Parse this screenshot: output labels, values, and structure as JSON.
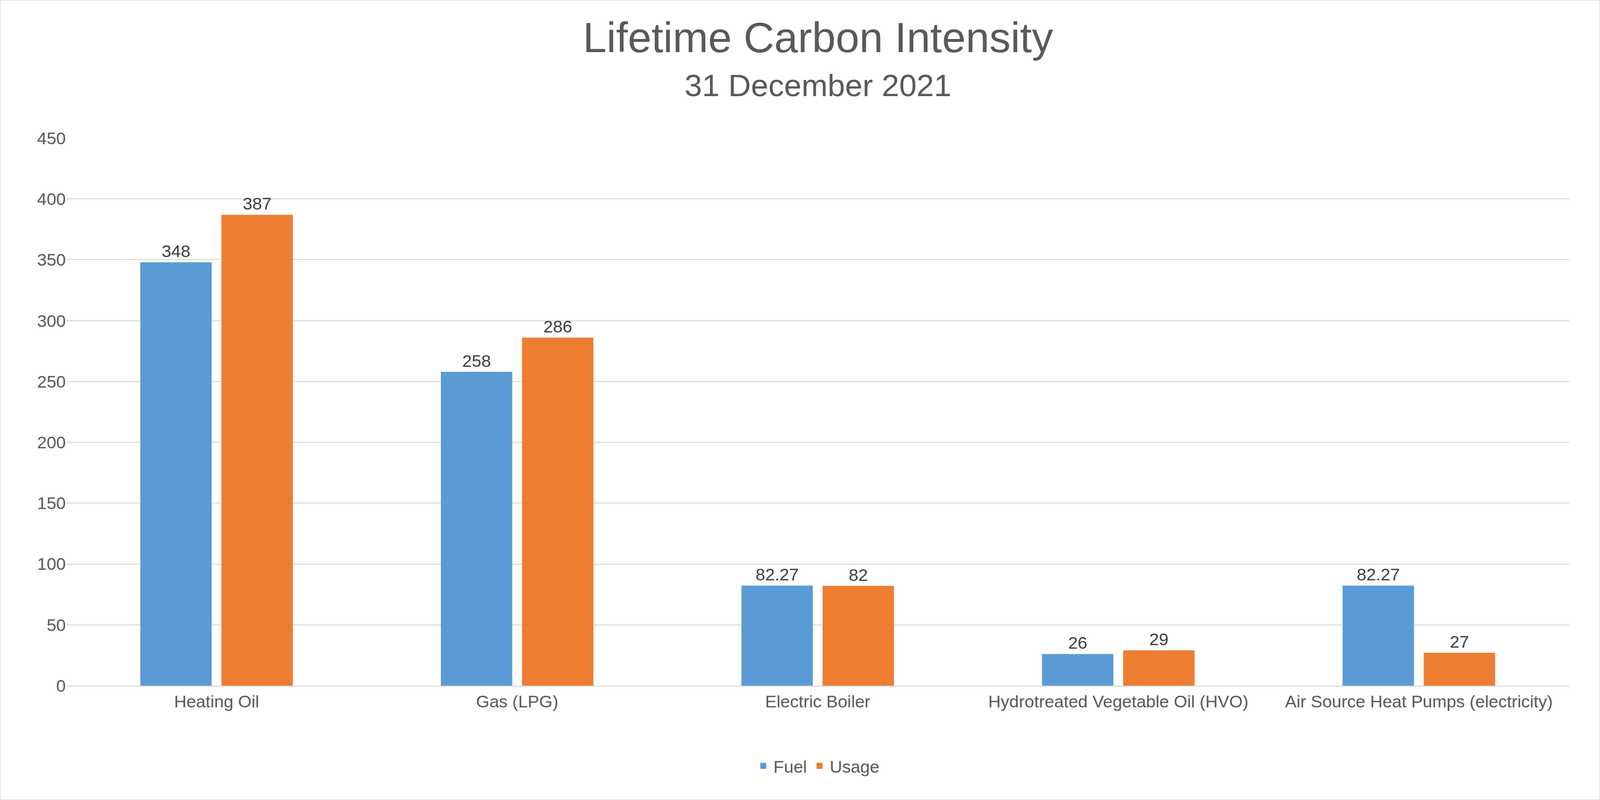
{
  "chart_data": {
    "type": "bar",
    "title": "Lifetime Carbon Intensity",
    "subtitle": "31 December 2021",
    "categories": [
      "Heating Oil",
      "Gas (LPG)",
      "Electric Boiler",
      "Hydrotreated Vegetable Oil (HVO)",
      "Air Source Heat Pumps (electricity)"
    ],
    "series": [
      {
        "name": "Fuel",
        "color": "#5b9bd5",
        "values": [
          348,
          258,
          82.27,
          26,
          82.27
        ]
      },
      {
        "name": "Usage",
        "color": "#ed7d31",
        "values": [
          387,
          286,
          82,
          29,
          27
        ]
      }
    ],
    "ylim": [
      0,
      450
    ],
    "yticks": [
      0,
      50,
      100,
      150,
      200,
      250,
      300,
      350,
      400,
      450
    ],
    "grid": true,
    "legend": "bottom",
    "data_labels": true
  }
}
